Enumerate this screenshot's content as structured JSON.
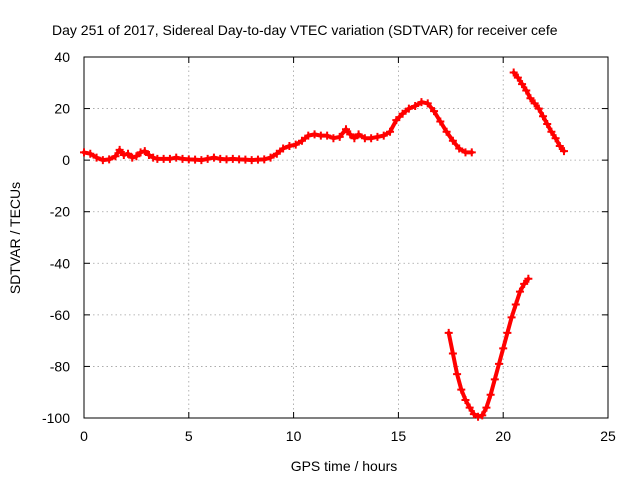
{
  "chart_data": {
    "type": "scatter",
    "title": "Day 251 of 2017, Sidereal Day-to-day VTEC variation (SDTVAR) for receiver cefe",
    "xlabel": "GPS time / hours",
    "ylabel": "SDTVAR / TECUs",
    "xlim": [
      0,
      25
    ],
    "ylim": [
      -100,
      40
    ],
    "xticks": [
      0,
      5,
      10,
      15,
      20,
      25
    ],
    "yticks": [
      -100,
      -80,
      -60,
      -40,
      -20,
      0,
      20,
      40
    ],
    "grid": true,
    "marker": "plus",
    "color": "#ff0000",
    "series": [
      {
        "points": [
          [
            0,
            3
          ],
          [
            0.3,
            2.5
          ],
          [
            0.6,
            1
          ],
          [
            0.9,
            0
          ],
          [
            1.2,
            0.3
          ],
          [
            1.5,
            1.5
          ],
          [
            1.7,
            4
          ],
          [
            1.9,
            2
          ],
          [
            2.1,
            2.5
          ],
          [
            2.3,
            1
          ],
          [
            2.5,
            1.5
          ],
          [
            2.7,
            3
          ],
          [
            2.9,
            3.5
          ],
          [
            3.1,
            2
          ],
          [
            3.3,
            1
          ],
          [
            3.5,
            0.5
          ],
          [
            3.8,
            0.5
          ],
          [
            4.1,
            0.5
          ],
          [
            4.4,
            1
          ],
          [
            4.7,
            0.5
          ],
          [
            5,
            0.3
          ],
          [
            5.3,
            0.2
          ],
          [
            5.6,
            0
          ],
          [
            5.9,
            0.5
          ],
          [
            6.2,
            1
          ],
          [
            6.5,
            0.5
          ],
          [
            6.8,
            0.3
          ],
          [
            7.1,
            0.5
          ],
          [
            7.4,
            0.3
          ],
          [
            7.7,
            0.2
          ],
          [
            8,
            0
          ],
          [
            8.3,
            0.2
          ],
          [
            8.6,
            0.3
          ],
          [
            8.9,
            1
          ],
          [
            9.2,
            2.5
          ],
          [
            9.5,
            4.5
          ],
          [
            9.8,
            5.5
          ],
          [
            10.1,
            6
          ],
          [
            10.4,
            7.5
          ],
          [
            10.7,
            9.5
          ],
          [
            11,
            10
          ],
          [
            11.3,
            9.5
          ],
          [
            11.6,
            9.5
          ],
          [
            11.9,
            8.5
          ],
          [
            12.2,
            9
          ],
          [
            12.5,
            12
          ],
          [
            12.7,
            10
          ],
          [
            12.9,
            8.5
          ],
          [
            13.1,
            10
          ],
          [
            13.4,
            8.5
          ],
          [
            13.7,
            8.5
          ],
          [
            14,
            9
          ],
          [
            14.3,
            9.5
          ],
          [
            14.6,
            11
          ],
          [
            14.9,
            15.5
          ],
          [
            15.2,
            18
          ],
          [
            15.5,
            20
          ],
          [
            15.8,
            21
          ],
          [
            16.1,
            22.5
          ],
          [
            16.4,
            22
          ],
          [
            16.7,
            19
          ],
          [
            17,
            15
          ],
          [
            17.3,
            11
          ],
          [
            17.6,
            7.5
          ],
          [
            17.9,
            4.5
          ],
          [
            18.2,
            3
          ],
          [
            18.5,
            3
          ]
        ]
      },
      {
        "points": [
          [
            17.4,
            -67
          ],
          [
            17.6,
            -75
          ],
          [
            17.8,
            -83
          ],
          [
            18.0,
            -89
          ],
          [
            18.2,
            -93
          ],
          [
            18.4,
            -96
          ],
          [
            18.6,
            -98.5
          ],
          [
            18.8,
            -99.5
          ],
          [
            19.0,
            -99
          ],
          [
            19.2,
            -96
          ],
          [
            19.4,
            -91
          ],
          [
            19.6,
            -85
          ],
          [
            19.8,
            -79
          ],
          [
            20.0,
            -73
          ],
          [
            20.2,
            -67
          ],
          [
            20.4,
            -61
          ],
          [
            20.6,
            -56
          ],
          [
            20.8,
            -51
          ],
          [
            21.0,
            -48
          ],
          [
            21.2,
            -46
          ]
        ]
      },
      {
        "points": [
          [
            20.5,
            34
          ],
          [
            20.7,
            32
          ],
          [
            20.9,
            29.5
          ],
          [
            21.1,
            27
          ],
          [
            21.3,
            24
          ],
          [
            21.5,
            22
          ],
          [
            21.7,
            20
          ],
          [
            21.9,
            17
          ],
          [
            22.1,
            14
          ],
          [
            22.3,
            11
          ],
          [
            22.5,
            8.5
          ],
          [
            22.7,
            5.5
          ],
          [
            22.9,
            3.5
          ]
        ]
      }
    ]
  }
}
